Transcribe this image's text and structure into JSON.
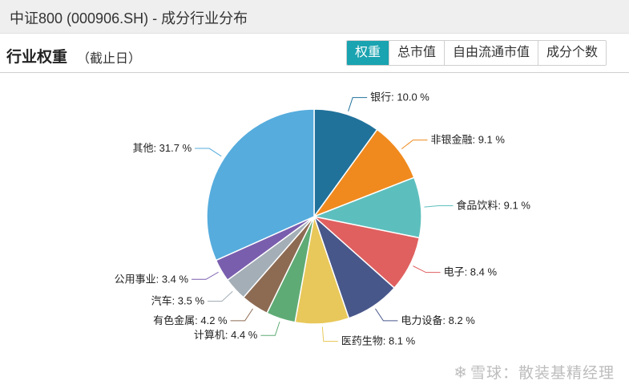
{
  "window": {
    "title": "中证800 (000906.SH) - 成分行业分布"
  },
  "section": {
    "title": "行业权重",
    "subtitle": "（截止日）"
  },
  "tabs": [
    {
      "label": "权重",
      "active": true
    },
    {
      "label": "总市值",
      "active": false
    },
    {
      "label": "自由流通市值",
      "active": false
    },
    {
      "label": "成分个数",
      "active": false
    }
  ],
  "watermark": {
    "symbol": "❄",
    "text": "雪球：散装基精经理"
  },
  "chart_data": {
    "type": "pie",
    "unit": "%",
    "slices": [
      {
        "label": "银行",
        "value": 10.0,
        "color": "#21729b"
      },
      {
        "label": "非银金融",
        "value": 9.1,
        "color": "#f08a1e"
      },
      {
        "label": "食品饮料",
        "value": 9.1,
        "color": "#5dbfbd"
      },
      {
        "label": "电子",
        "value": 8.4,
        "color": "#e06060"
      },
      {
        "label": "电力设备",
        "value": 8.2,
        "color": "#48578a"
      },
      {
        "label": "医药生物",
        "value": 8.1,
        "color": "#e8c85a"
      },
      {
        "label": "计算机",
        "value": 4.4,
        "color": "#5fab75"
      },
      {
        "label": "有色金属",
        "value": 4.2,
        "color": "#8d6b53"
      },
      {
        "label": "汽车",
        "value": 3.5,
        "color": "#a3aeb6"
      },
      {
        "label": "公用事业",
        "value": 3.4,
        "color": "#7a5eae"
      },
      {
        "label": "其他",
        "value": 31.7,
        "color": "#56acdd"
      }
    ]
  }
}
